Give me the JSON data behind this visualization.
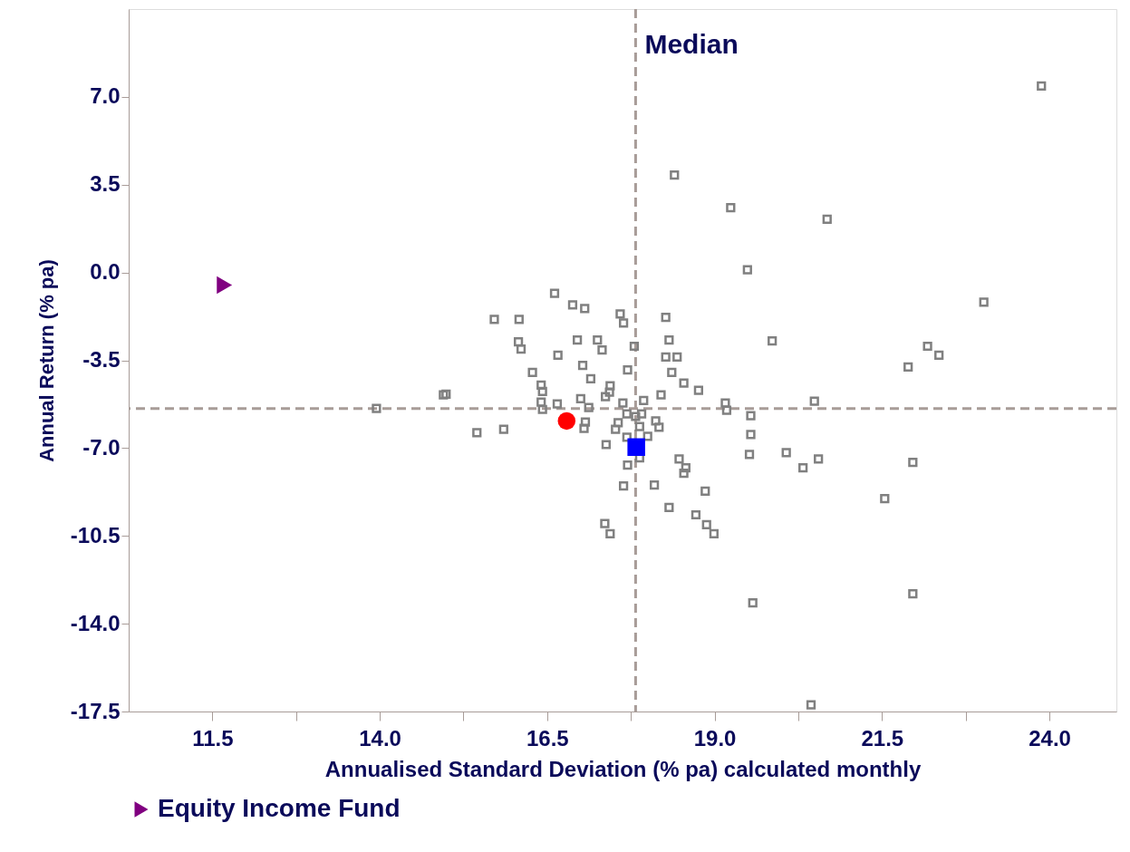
{
  "chart_data": {
    "type": "scatter",
    "xlabel": "Annualised Standard Deviation (% pa) calculated monthly",
    "ylabel": "Annual Return (% pa)",
    "xlim": [
      10.25,
      25.0
    ],
    "ylim": [
      -17.5,
      10.5
    ],
    "xticks": [
      11.5,
      {
        "value": 12.75,
        "label": null
      },
      {
        "value": 14,
        "label": "14.0"
      },
      {
        "value": 15.25,
        "label": null
      },
      16.5,
      {
        "value": 17.75,
        "label": null
      },
      {
        "value": 19,
        "label": "19.0"
      },
      {
        "value": 20.25,
        "label": null
      },
      21.5,
      {
        "value": 22.75,
        "label": null
      },
      {
        "value": 24,
        "label": "24.0"
      }
    ],
    "yticks": [
      -17.5,
      {
        "value": -14,
        "label": "-14.0"
      },
      -10.5,
      {
        "value": -7,
        "label": "-7.0"
      },
      -3.5,
      {
        "value": 0,
        "label": "0.0"
      },
      3.5,
      {
        "value": 7,
        "label": "7.0"
      }
    ],
    "grid": false,
    "legend": "bottom",
    "ref_lines": [
      {
        "axis": "x",
        "value": 17.82,
        "label": "Median",
        "color": "#a89c98",
        "line_style": "dashed"
      },
      {
        "axis": "y",
        "value": -5.42,
        "color": "#a89c98",
        "line_style": "dashed"
      }
    ],
    "series": [
      {
        "color": "#808080",
        "marker": "square",
        "x": [
          23.88,
          18.4,
          19.24,
          20.68,
          19.49,
          23.02,
          16.61,
          16.88,
          17.06,
          15.71,
          16.08,
          17.59,
          17.64,
          18.27,
          16.07,
          16.11,
          16.95,
          17.25,
          17.32,
          17.8,
          18.32,
          16.66,
          18.27,
          18.44,
          17.03,
          17.7,
          18.36,
          16.28,
          17.15,
          17.44,
          16.41,
          16.43,
          18.54,
          18.76,
          14.99,
          14.95,
          17.43,
          17.37,
          18.2,
          13.95,
          16.41,
          16.65,
          16.43,
          17.0,
          17.12,
          17.63,
          17.69,
          17.94,
          17.91,
          17.82,
          18.12,
          18.17,
          19.16,
          19.18,
          19.54,
          19.54,
          20.49,
          15.45,
          15.85,
          17.07,
          17.05,
          17.56,
          17.52,
          17.69,
          17.88,
          18.0,
          17.38,
          17.88,
          17.7,
          17.64,
          18.1,
          18.47,
          18.57,
          18.54,
          18.86,
          18.32,
          18.72,
          18.88,
          18.99,
          17.36,
          17.44,
          19.52,
          20.07,
          20.32,
          20.55,
          21.54,
          21.96,
          21.89,
          22.18,
          22.35,
          19.86,
          19.57,
          21.96,
          20.44
        ],
        "values": [
          7.43,
          3.88,
          2.58,
          2.12,
          0.11,
          -1.18,
          -0.83,
          -1.29,
          -1.44,
          -1.87,
          -1.87,
          -1.65,
          -2.01,
          -1.79,
          -2.76,
          -3.05,
          -2.69,
          -2.69,
          -3.09,
          -2.94,
          -2.69,
          -3.3,
          -3.37,
          -3.37,
          -3.7,
          -3.88,
          -3.98,
          -3.98,
          -4.24,
          -4.52,
          -4.49,
          -4.74,
          -4.41,
          -4.7,
          -4.85,
          -4.88,
          -4.77,
          -4.95,
          -4.88,
          -5.42,
          -5.17,
          -5.24,
          -5.46,
          -5.03,
          -5.38,
          -5.2,
          -5.64,
          -5.1,
          -5.64,
          -5.74,
          -5.92,
          -6.17,
          -5.2,
          -5.49,
          -5.71,
          -6.46,
          -5.13,
          -6.39,
          -6.25,
          -5.96,
          -6.21,
          -5.99,
          -6.25,
          -6.57,
          -6.14,
          -6.53,
          -6.86,
          -7.39,
          -7.68,
          -8.51,
          -8.47,
          -7.43,
          -7.79,
          -8.0,
          -8.72,
          -9.37,
          -9.66,
          -10.05,
          -10.41,
          -10.01,
          -10.41,
          -7.25,
          -7.18,
          -7.79,
          -7.43,
          -9.01,
          -7.57,
          -3.77,
          -2.94,
          -3.3,
          -2.73,
          -13.17,
          -12.81,
          -17.23
        ]
      },
      {
        "color": "#0000ff",
        "marker": "square",
        "x": [
          17.83
        ],
        "values": [
          -6.96
        ]
      },
      {
        "color": "#ff0000",
        "marker": "circle",
        "x": [
          16.79
        ],
        "values": [
          -5.92
        ]
      },
      {
        "name": "Equity Income Fund",
        "color": "#800080",
        "marker": "triangle",
        "x": [
          11.68
        ],
        "values": [
          -0.5
        ]
      }
    ]
  }
}
